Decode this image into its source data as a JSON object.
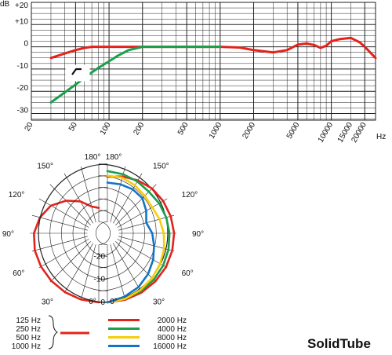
{
  "brand": "SolidTube",
  "colors": {
    "red": "#e3231b",
    "green": "#1a9f4b",
    "yellow": "#f6cd0a",
    "blue": "#1474c4",
    "grid": "#222222"
  },
  "chart_data": [
    {
      "type": "line",
      "x_scale": "log",
      "xlim": [
        20,
        25000
      ],
      "ylim": [
        -33,
        20
      ],
      "yunit_label": "dB",
      "xunit_label": "Hz",
      "ytick_labels": [
        "+20",
        "+10",
        "0",
        "-10",
        "-20",
        "-30"
      ],
      "ytick_values": [
        20,
        10,
        0,
        -10,
        -20,
        -30
      ],
      "xtick_labels": [
        "20",
        "50",
        "100",
        "200",
        "500",
        "1000",
        "2000",
        "5000",
        "10000",
        "15000",
        "20000"
      ],
      "xtick_values": [
        20,
        50,
        100,
        200,
        500,
        1000,
        2000,
        5000,
        10000,
        15000,
        20000
      ],
      "grid": true,
      "filter_icon": "high-pass-filter-icon",
      "series": [
        {
          "color": "red",
          "x": [
            30,
            40,
            50,
            60,
            70,
            100,
            200,
            500,
            1000,
            1500,
            2000,
            3000,
            4000,
            5000,
            6000,
            7000,
            8000,
            9000,
            10000,
            12000,
            15000,
            18000,
            20000,
            25000
          ],
          "y": [
            -5,
            -3,
            -1.5,
            -0.5,
            0,
            0,
            0,
            0,
            0,
            -0.3,
            -1.5,
            -2.5,
            -1.5,
            1,
            1.5,
            0.8,
            -0.5,
            0.5,
            2.5,
            3.5,
            4,
            2,
            0,
            -5
          ]
        },
        {
          "color": "green",
          "x": [
            30,
            40,
            50,
            60,
            70,
            80,
            100,
            120,
            150,
            200,
            500,
            1000
          ],
          "y": [
            -25,
            -20.5,
            -17,
            -14,
            -11.5,
            -9.5,
            -6.5,
            -4,
            -1.5,
            0,
            0,
            0
          ]
        }
      ]
    },
    {
      "type": "polar",
      "rings_db": [
        0,
        -5,
        -10,
        -15,
        -20,
        -25
      ],
      "ring_labels": [
        "0",
        "-10",
        "-20"
      ],
      "angle_labels": [
        "0°",
        "30°",
        "60°",
        "90°",
        "120°",
        "150°",
        "180°"
      ],
      "angle_values": [
        0,
        30,
        60,
        90,
        120,
        150,
        180
      ],
      "left_series": [
        {
          "color": "red",
          "label": "125 Hz",
          "angles": [
            0,
            15,
            30,
            45,
            60,
            75,
            90,
            105,
            120,
            135,
            150,
            165,
            180
          ],
          "db": [
            0,
            -0.2,
            -0.5,
            -0.8,
            -1,
            -1.2,
            -1.8,
            -3.5,
            -6,
            -10,
            -14,
            -18,
            -19
          ]
        }
      ],
      "right_series": [
        {
          "color": "red",
          "angles": [
            0,
            15,
            30,
            45,
            60,
            75,
            90,
            105,
            120,
            135,
            150,
            165,
            180
          ],
          "db": [
            0,
            -0.1,
            -0.3,
            -0.5,
            -0.6,
            -0.8,
            -1,
            -1.5,
            -2,
            -2.5,
            -3.5,
            -4.5,
            -5.5
          ]
        },
        {
          "color": "green",
          "angles": [
            0,
            15,
            30,
            45,
            60,
            75,
            90,
            105,
            120,
            135,
            150,
            165,
            180
          ],
          "db": [
            0,
            -0.5,
            -1,
            -1.5,
            -2,
            -2.5,
            -3,
            -3.5,
            -4,
            -4.5,
            -4,
            -3.5,
            -3
          ]
        },
        {
          "color": "yellow",
          "angles": [
            0,
            15,
            30,
            45,
            60,
            75,
            90,
            105,
            120,
            135,
            150,
            165,
            180
          ],
          "db": [
            0,
            -0.5,
            -1.5,
            -2.5,
            -3.5,
            -4.5,
            -5.5,
            -6.5,
            -7.5,
            -7,
            -6,
            -5,
            -5
          ]
        },
        {
          "color": "blue",
          "angles": [
            0,
            15,
            30,
            45,
            60,
            75,
            90,
            105,
            120,
            135,
            150,
            165,
            180
          ],
          "db": [
            0,
            -1.5,
            -3,
            -5,
            -7,
            -9,
            -10.5,
            -12.5,
            -10.5,
            -8.5,
            -8,
            -8,
            -8
          ]
        }
      ]
    }
  ],
  "legend": {
    "left": {
      "labels": [
        "125 Hz",
        "250 Hz",
        "500 Hz",
        "1000 Hz"
      ],
      "color": "red"
    },
    "right": [
      {
        "label": "2000 Hz",
        "color": "red"
      },
      {
        "label": "4000 Hz",
        "color": "green"
      },
      {
        "label": "8000 Hz",
        "color": "yellow"
      },
      {
        "label": "16000 Hz",
        "color": "blue"
      }
    ]
  }
}
